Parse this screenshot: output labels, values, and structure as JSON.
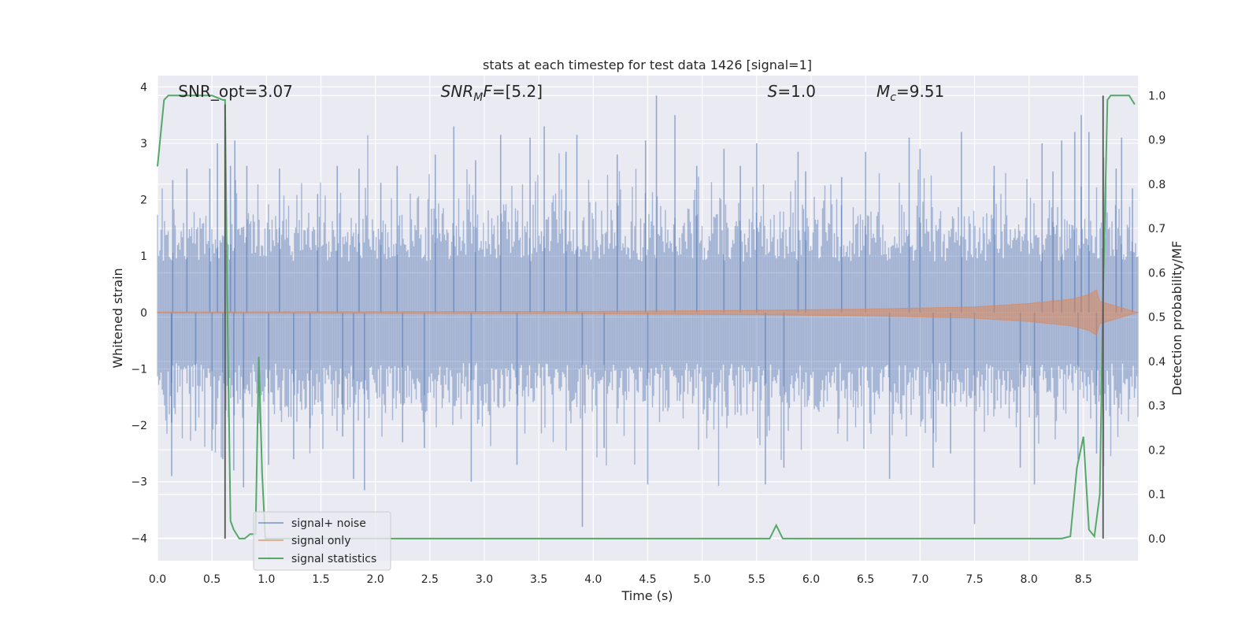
{
  "chart_data": {
    "type": "line",
    "title": "stats at each timestep for test data 1426 [signal=1]",
    "xlabel": "Time (s)",
    "ylabel": "Whitened strain",
    "y2label": "Detection probability/MF",
    "xlim": [
      0.0,
      9.0
    ],
    "ylim": [
      -4.4,
      4.2
    ],
    "y2lim": [
      -0.05,
      1.045
    ],
    "x_ticks": [
      "0.0",
      "0.5",
      "1.0",
      "1.5",
      "2.0",
      "2.5",
      "3.0",
      "3.5",
      "4.0",
      "4.5",
      "5.0",
      "5.5",
      "6.0",
      "6.5",
      "7.0",
      "7.5",
      "8.0",
      "8.5"
    ],
    "y_ticks": [
      "4",
      "3",
      "2",
      "1",
      "0",
      "−1",
      "−2",
      "−3",
      "−4"
    ],
    "y2_ticks": [
      "1.0",
      "0.9",
      "0.8",
      "0.7",
      "0.6",
      "0.5",
      "0.4",
      "0.3",
      "0.2",
      "0.1",
      "0.0"
    ],
    "grid": true,
    "legend_position": "lower-left",
    "colors": {
      "signal_noise": "#4c72b0",
      "signal_only": "#dd8452",
      "signal_statistics": "#55a868",
      "markers": "#555555",
      "background": "#eaeaf2",
      "grid": "#ffffff"
    },
    "annotations": [
      {
        "text": "SNR_opt=3.07",
        "x": 0.19
      },
      {
        "text": "SNRMF=[5.2]",
        "x": 2.6
      },
      {
        "text": "S=1.0",
        "x": 5.6
      },
      {
        "text": "Mc=9.51",
        "x": 6.6
      }
    ],
    "vertical_markers": [
      {
        "x": 0.62,
        "y_top": 0.98
      },
      {
        "x": 8.68,
        "y_top": 1.0
      }
    ],
    "series": [
      {
        "name": "signal+ noise",
        "axis": "left",
        "spikes": [
          {
            "x": 0.14,
            "y": 2.35
          },
          {
            "x": 0.13,
            "y": -1.95
          },
          {
            "x": 0.13,
            "y": -2.9
          },
          {
            "x": 0.27,
            "y": 2.55
          },
          {
            "x": 0.35,
            "y": -2.1
          },
          {
            "x": 0.48,
            "y": 2.55
          },
          {
            "x": 0.5,
            "y": -2.45
          },
          {
            "x": 0.55,
            "y": 3.0
          },
          {
            "x": 0.6,
            "y": -2.6
          },
          {
            "x": 0.67,
            "y": 2.6
          },
          {
            "x": 0.7,
            "y": -2.8
          },
          {
            "x": 0.71,
            "y": 3.05
          },
          {
            "x": 0.79,
            "y": -3.1
          },
          {
            "x": 0.82,
            "y": 2.6
          },
          {
            "x": 1.02,
            "y": -2.7
          },
          {
            "x": 1.12,
            "y": 2.55
          },
          {
            "x": 1.25,
            "y": -2.6
          },
          {
            "x": 1.4,
            "y": -2.05
          },
          {
            "x": 1.47,
            "y": 2.1
          },
          {
            "x": 1.65,
            "y": 2.6
          },
          {
            "x": 1.7,
            "y": -2.2
          },
          {
            "x": 1.85,
            "y": 2.55
          },
          {
            "x": 1.8,
            "y": -2.95
          },
          {
            "x": 1.9,
            "y": -3.15
          },
          {
            "x": 2.05,
            "y": 2.3
          },
          {
            "x": 2.2,
            "y": 2.6
          },
          {
            "x": 2.25,
            "y": -2.3
          },
          {
            "x": 2.45,
            "y": -2.4
          },
          {
            "x": 2.55,
            "y": 2.8
          },
          {
            "x": 2.72,
            "y": 3.3
          },
          {
            "x": 2.88,
            "y": -3.0
          },
          {
            "x": 2.92,
            "y": 2.7
          },
          {
            "x": 3.15,
            "y": 3.15
          },
          {
            "x": 3.3,
            "y": -2.7
          },
          {
            "x": 3.42,
            "y": 3.1
          },
          {
            "x": 3.55,
            "y": 3.3
          },
          {
            "x": 3.75,
            "y": 2.85
          },
          {
            "x": 3.85,
            "y": 3.15
          },
          {
            "x": 3.9,
            "y": -3.8
          },
          {
            "x": 4.1,
            "y": -2.4
          },
          {
            "x": 4.22,
            "y": 2.8
          },
          {
            "x": 4.48,
            "y": 3.05
          },
          {
            "x": 4.5,
            "y": -3.05
          },
          {
            "x": 4.58,
            "y": 3.85
          },
          {
            "x": 4.75,
            "y": 3.5
          },
          {
            "x": 4.95,
            "y": 2.6
          },
          {
            "x": 5.2,
            "y": 2.9
          },
          {
            "x": 5.35,
            "y": 2.6
          },
          {
            "x": 5.5,
            "y": 3.0
          },
          {
            "x": 5.58,
            "y": -3.05
          },
          {
            "x": 5.75,
            "y": -2.75
          },
          {
            "x": 5.88,
            "y": 2.85
          },
          {
            "x": 5.95,
            "y": 2.5
          },
          {
            "x": 6.28,
            "y": 2.4
          },
          {
            "x": 6.5,
            "y": 2.85
          },
          {
            "x": 6.72,
            "y": -2.95
          },
          {
            "x": 6.9,
            "y": 3.1
          },
          {
            "x": 7.0,
            "y": 2.9
          },
          {
            "x": 7.12,
            "y": -2.75
          },
          {
            "x": 7.28,
            "y": -2.5
          },
          {
            "x": 7.38,
            "y": 3.2
          },
          {
            "x": 7.5,
            "y": -3.75
          },
          {
            "x": 7.68,
            "y": 2.6
          },
          {
            "x": 7.92,
            "y": -2.75
          },
          {
            "x": 8.05,
            "y": -3.05
          },
          {
            "x": 8.12,
            "y": 3.0
          },
          {
            "x": 8.22,
            "y": 2.5
          },
          {
            "x": 8.3,
            "y": 3.05
          },
          {
            "x": 8.42,
            "y": 3.2
          },
          {
            "x": 8.45,
            "y": -2.6
          },
          {
            "x": 8.48,
            "y": 3.5
          },
          {
            "x": 8.55,
            "y": 3.2
          },
          {
            "x": 8.62,
            "y": -2.5
          },
          {
            "x": 8.8,
            "y": 2.55
          },
          {
            "x": 8.85,
            "y": 3.1
          },
          {
            "x": 8.95,
            "y": 2.2
          }
        ]
      },
      {
        "name": "signal only",
        "axis": "left",
        "envelope": [
          [
            0.0,
            0.01
          ],
          [
            4.0,
            0.02
          ],
          [
            5.5,
            0.04
          ],
          [
            6.5,
            0.06
          ],
          [
            7.5,
            0.1
          ],
          [
            8.0,
            0.16
          ],
          [
            8.4,
            0.24
          ],
          [
            8.55,
            0.32
          ],
          [
            8.62,
            0.4
          ],
          [
            8.65,
            0.2
          ],
          [
            9.0,
            0.0
          ]
        ]
      },
      {
        "name": "signal statistics",
        "axis": "right",
        "x": [
          0.0,
          0.06,
          0.1,
          0.2,
          0.3,
          0.4,
          0.5,
          0.6,
          0.62,
          0.64,
          0.67,
          0.7,
          0.75,
          0.8,
          0.85,
          0.9,
          0.93,
          0.96,
          0.99,
          1.02,
          1.05,
          1.1,
          2.0,
          3.0,
          4.0,
          5.0,
          5.5,
          5.62,
          5.68,
          5.74,
          6.0,
          7.0,
          8.0,
          8.3,
          8.38,
          8.44,
          8.5,
          8.55,
          8.6,
          8.65,
          8.68,
          8.72,
          8.75,
          8.8,
          8.86,
          8.92,
          8.97
        ],
        "y": [
          0.84,
          0.99,
          1.0,
          1.0,
          1.0,
          1.0,
          1.0,
          0.99,
          0.99,
          0.55,
          0.04,
          0.02,
          0.0,
          0.0,
          0.01,
          0.01,
          0.41,
          0.15,
          0.0,
          0.0,
          0.0,
          0.0,
          0.0,
          0.0,
          0.0,
          0.0,
          0.0,
          0.0,
          0.03,
          0.0,
          0.0,
          0.0,
          0.0,
          0.0,
          0.005,
          0.16,
          0.23,
          0.02,
          0.005,
          0.1,
          0.55,
          0.99,
          1.0,
          1.0,
          1.0,
          1.0,
          0.98
        ]
      }
    ]
  }
}
